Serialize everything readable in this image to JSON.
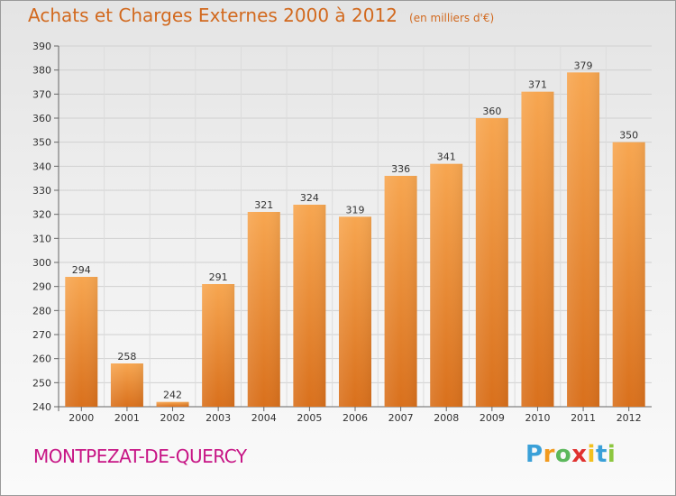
{
  "chart_data": {
    "type": "bar",
    "title": "Achats et Charges Externes 2000 à 2012",
    "subtitle": "(en milliers d'€)",
    "categories": [
      "2000",
      "2001",
      "2002",
      "2003",
      "2004",
      "2005",
      "2006",
      "2007",
      "2008",
      "2009",
      "2010",
      "2011",
      "2012"
    ],
    "values": [
      294,
      258,
      242,
      291,
      321,
      324,
      319,
      336,
      341,
      360,
      371,
      379,
      350
    ],
    "ylim": [
      240,
      390
    ],
    "yticks": [
      240,
      250,
      260,
      270,
      280,
      290,
      300,
      310,
      320,
      330,
      340,
      350,
      360,
      370,
      380,
      390
    ],
    "grid": true,
    "bar_color": "#f0913a",
    "xlabel": "",
    "ylabel": ""
  },
  "location": "MONTPEZAT-DE-QUERCY",
  "logo": {
    "letters": [
      "P",
      "r",
      "o",
      "x",
      "i",
      "t",
      "i"
    ],
    "colors": [
      "#3aa0d8",
      "#f29a1e",
      "#5cb85c",
      "#e0312f",
      "#f2c01e",
      "#3aa0d8",
      "#8cc63f"
    ]
  }
}
